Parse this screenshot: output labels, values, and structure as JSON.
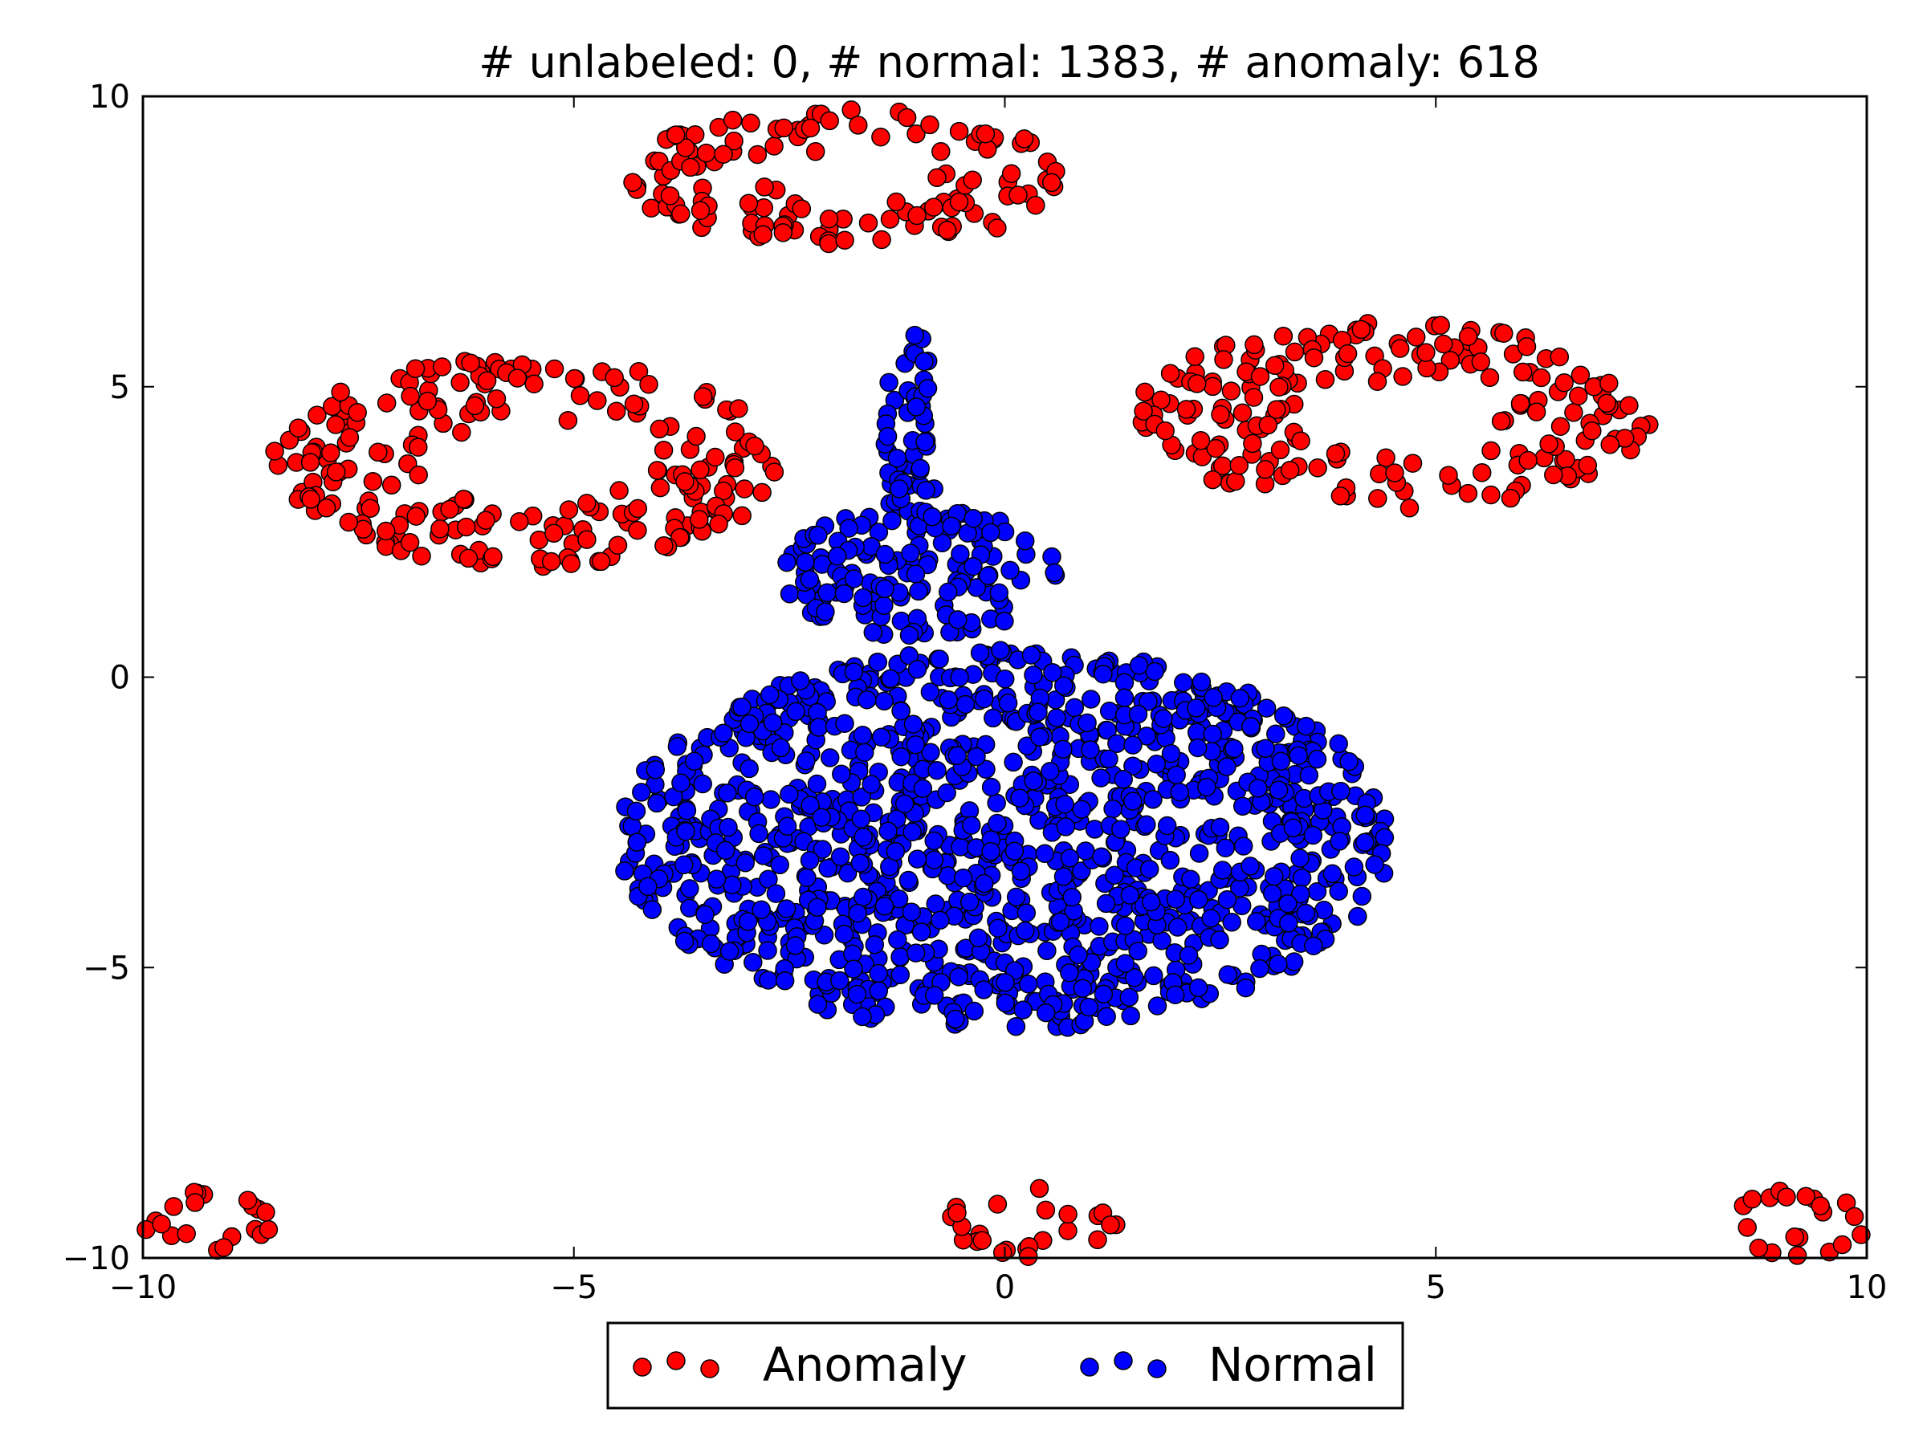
{
  "chart_data": {
    "type": "scatter",
    "title": "# unlabeled: 0, # normal: 1383, # anomaly: 618",
    "xlabel": "",
    "ylabel": "",
    "xlim": [
      -10,
      10
    ],
    "ylim": [
      -10,
      10
    ],
    "x_ticks": [
      -10,
      -5,
      0,
      5,
      10
    ],
    "y_ticks": [
      -10,
      -5,
      0,
      5,
      10
    ],
    "x_tick_labels": [
      "−10",
      "−5",
      "0",
      "5",
      "10"
    ],
    "y_tick_labels": [
      "−10",
      "−5",
      "0",
      "5",
      "10"
    ],
    "grid": false,
    "legend_position": "bottom-center-outside",
    "series": [
      {
        "name": "Anomaly",
        "color": "#ff0000",
        "count": 618,
        "clusters": [
          {
            "label": "top",
            "center": [
              -1.8,
              8.6
            ],
            "rx": 2.6,
            "ry": 1.2
          },
          {
            "label": "upper-left",
            "center": [
              -5.5,
              3.7
            ],
            "rx": 3.0,
            "ry": 1.8
          },
          {
            "label": "upper-right",
            "center": [
              4.5,
              4.5
            ],
            "rx": 3.0,
            "ry": 1.6
          },
          {
            "label": "bottom-left",
            "center": [
              -9.2,
              -9.4
            ],
            "rx": 0.8,
            "ry": 0.6
          },
          {
            "label": "bottom-center",
            "center": [
              0.3,
              -9.4
            ],
            "rx": 1.0,
            "ry": 0.6
          },
          {
            "label": "bottom-right",
            "center": [
              9.2,
              -9.4
            ],
            "rx": 0.8,
            "ry": 0.6
          }
        ]
      },
      {
        "name": "Normal",
        "color": "#0000ff",
        "count": 1383,
        "clusters": [
          {
            "label": "stem",
            "center": [
              -1.1,
              4.2
            ],
            "rx": 0.35,
            "ry": 1.8
          },
          {
            "label": "shoulder",
            "center": [
              -1.0,
              1.8
            ],
            "rx": 1.6,
            "ry": 1.1
          },
          {
            "label": "body",
            "center": [
              0.0,
              -2.8
            ],
            "rx": 4.5,
            "ry": 3.3
          }
        ]
      }
    ]
  }
}
